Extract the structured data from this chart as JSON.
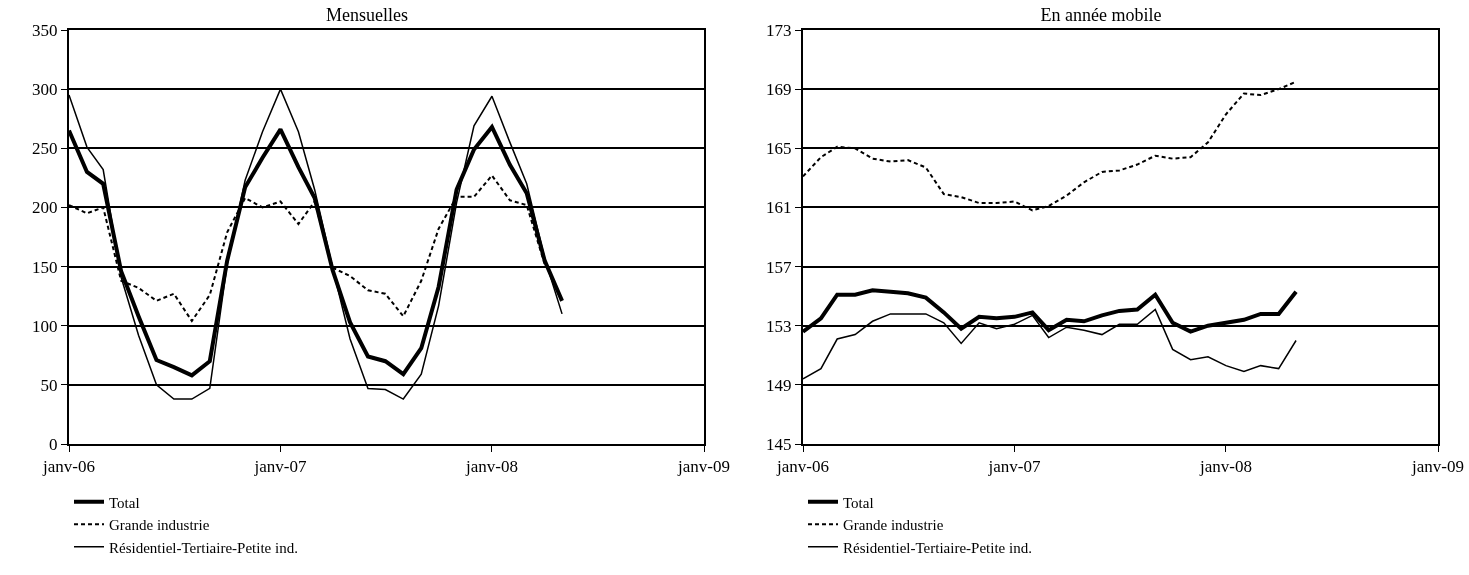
{
  "chart_data": [
    {
      "type": "line",
      "title": "Mensuelles",
      "x": [
        "2006-01",
        "2006-02",
        "2006-03",
        "2006-04",
        "2006-05",
        "2006-06",
        "2006-07",
        "2006-08",
        "2006-09",
        "2006-10",
        "2006-11",
        "2006-12",
        "2007-01",
        "2007-02",
        "2007-03",
        "2007-04",
        "2007-05",
        "2007-06",
        "2007-07",
        "2007-08",
        "2007-09",
        "2007-10",
        "2007-11",
        "2007-12",
        "2008-01",
        "2008-02",
        "2008-03",
        "2008-04",
        "2008-05"
      ],
      "series": [
        {
          "name": "Total",
          "color": "#000000",
          "line_style": "solid",
          "values": [
            265,
            230,
            220,
            146,
            108,
            71,
            65,
            58,
            70,
            155,
            217,
            242,
            266,
            234,
            208,
            147,
            103,
            74,
            70,
            59,
            81,
            133,
            215,
            249,
            268,
            236,
            212,
            155,
            121
          ]
        },
        {
          "name": "Grande industrie",
          "color": "#000000",
          "line_style": "dashed",
          "values": [
            202,
            195,
            200,
            138,
            132,
            121,
            127,
            104,
            126,
            179,
            208,
            200,
            205,
            186,
            205,
            149,
            142,
            130,
            127,
            108,
            138,
            182,
            209,
            209,
            227,
            206,
            202,
            152,
            null
          ]
        },
        {
          "name": "Résidentiel-Tertiaire-Petite ind.",
          "color": "#000000",
          "line_style": "solid",
          "values": [
            295,
            251,
            232,
            141,
            92,
            50,
            38,
            38,
            47,
            152,
            223,
            264,
            300,
            264,
            215,
            149,
            89,
            47,
            46,
            38,
            59,
            117,
            204,
            269,
            294,
            255,
            220,
            157,
            110
          ]
        }
      ],
      "xlim": [
        "2006-01",
        "2009-01"
      ],
      "xticks": [
        {
          "value": "2006-01",
          "label": "janv-06"
        },
        {
          "value": "2007-01",
          "label": "janv-07"
        },
        {
          "value": "2008-01",
          "label": "janv-08"
        },
        {
          "value": "2009-01",
          "label": "janv-09"
        }
      ],
      "ylim": [
        0,
        350
      ],
      "yticks": [
        0,
        50,
        100,
        150,
        200,
        250,
        300,
        350
      ],
      "grid": "y",
      "legend": "bottom",
      "marker": "none"
    },
    {
      "type": "line",
      "title": "En année mobile",
      "x": [
        "2006-01",
        "2006-02",
        "2006-03",
        "2006-04",
        "2006-05",
        "2006-06",
        "2006-07",
        "2006-08",
        "2006-09",
        "2006-10",
        "2006-11",
        "2006-12",
        "2007-01",
        "2007-02",
        "2007-03",
        "2007-04",
        "2007-05",
        "2007-06",
        "2007-07",
        "2007-08",
        "2007-09",
        "2007-10",
        "2007-11",
        "2007-12",
        "2008-01",
        "2008-02",
        "2008-03",
        "2008-04",
        "2008-05"
      ],
      "series": [
        {
          "name": "Total",
          "color": "#000000",
          "line_style": "solid",
          "values": [
            152.6,
            153.5,
            155.1,
            155.1,
            155.4,
            155.3,
            155.2,
            154.9,
            153.9,
            152.8,
            153.6,
            153.5,
            153.6,
            153.9,
            152.7,
            153.4,
            153.3,
            153.7,
            154.0,
            154.1,
            155.1,
            153.2,
            152.6,
            153.0,
            153.2,
            153.4,
            153.8,
            153.8,
            155.3
          ]
        },
        {
          "name": "Grande industrie",
          "color": "#000000",
          "line_style": "dashed",
          "values": [
            163.1,
            164.4,
            165.1,
            165.0,
            164.3,
            164.1,
            164.2,
            163.7,
            161.9,
            161.7,
            161.3,
            161.3,
            161.4,
            160.8,
            161.1,
            161.8,
            162.7,
            163.4,
            163.5,
            163.9,
            164.5,
            164.3,
            164.4,
            165.4,
            167.3,
            168.7,
            168.6,
            169.0,
            169.5
          ]
        },
        {
          "name": "Résidentiel-Tertiaire-Petite ind.",
          "color": "#000000",
          "line_style": "solid",
          "values": [
            149.4,
            150.1,
            152.1,
            152.4,
            153.3,
            153.8,
            153.8,
            153.8,
            153.2,
            151.8,
            153.2,
            152.8,
            153.1,
            153.7,
            152.2,
            152.9,
            152.7,
            152.4,
            153.1,
            153.1,
            154.1,
            151.4,
            150.7,
            150.9,
            150.3,
            149.9,
            150.3,
            150.1,
            152.0
          ]
        }
      ],
      "xlim": [
        "2006-01",
        "2009-01"
      ],
      "xticks": [
        {
          "value": "2006-01",
          "label": "janv-06"
        },
        {
          "value": "2007-01",
          "label": "janv-07"
        },
        {
          "value": "2008-01",
          "label": "janv-08"
        },
        {
          "value": "2009-01",
          "label": "janv-09"
        }
      ],
      "ylim": [
        145,
        173
      ],
      "yticks": [
        145,
        149,
        153,
        157,
        161,
        165,
        169,
        173
      ],
      "grid": "y",
      "legend": "bottom",
      "marker": "none"
    }
  ]
}
